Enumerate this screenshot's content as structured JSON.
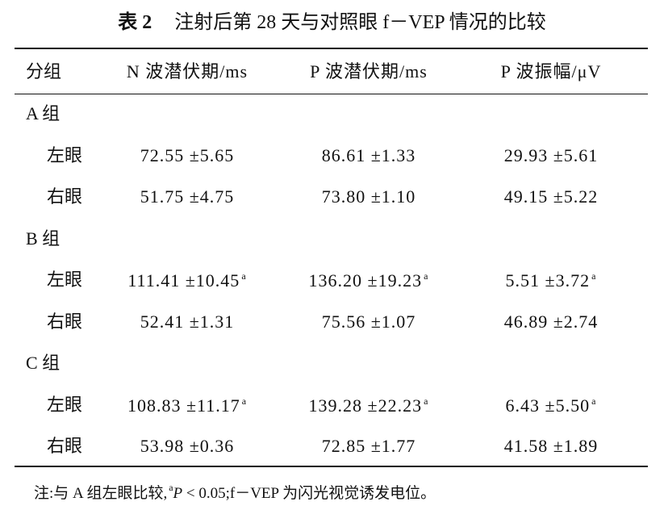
{
  "title": {
    "label": "表 2",
    "text": "注射后第 28 天与对照眼 f－VEP 情况的比较"
  },
  "table": {
    "header": [
      "分组",
      "N 波潜伏期/ms",
      "P 波潜伏期/ms",
      "P 波振幅/μV"
    ],
    "groups": [
      {
        "label": "A 组",
        "rows": [
          {
            "label": "左眼",
            "cells": [
              {
                "text": "72.55 ±5.65"
              },
              {
                "text": "86.61 ±1.33"
              },
              {
                "text": "29.93 ±5.61"
              }
            ]
          },
          {
            "label": "右眼",
            "cells": [
              {
                "text": "51.75 ±4.75"
              },
              {
                "text": "73.80 ±1.10"
              },
              {
                "text": "49.15 ±5.22"
              }
            ]
          }
        ]
      },
      {
        "label": "B 组",
        "rows": [
          {
            "label": "左眼",
            "cells": [
              {
                "text": "111.41 ±10.45",
                "sup": "a"
              },
              {
                "text": "136.20 ±19.23",
                "sup": "a"
              },
              {
                "text": "5.51 ±3.72",
                "sup": "a"
              }
            ]
          },
          {
            "label": "右眼",
            "cells": [
              {
                "text": "52.41 ±1.31"
              },
              {
                "text": "75.56 ±1.07"
              },
              {
                "text": "46.89 ±2.74"
              }
            ]
          }
        ]
      },
      {
        "label": "C 组",
        "rows": [
          {
            "label": "左眼",
            "cells": [
              {
                "text": "108.83 ±11.17",
                "sup": "a"
              },
              {
                "text": "139.28 ±22.23",
                "sup": "a"
              },
              {
                "text": "6.43 ±5.50",
                "sup": "a"
              }
            ]
          },
          {
            "label": "右眼",
            "cells": [
              {
                "text": "53.98 ±0.36"
              },
              {
                "text": "72.85 ±1.77"
              },
              {
                "text": "41.58 ±1.89"
              }
            ]
          }
        ]
      }
    ]
  },
  "note": {
    "prefix": "注:与 A 组左眼比较,",
    "sup": "a",
    "italic": "P",
    "suffix": " < 0.05;f－VEP 为闪光视觉诱发电位。"
  }
}
